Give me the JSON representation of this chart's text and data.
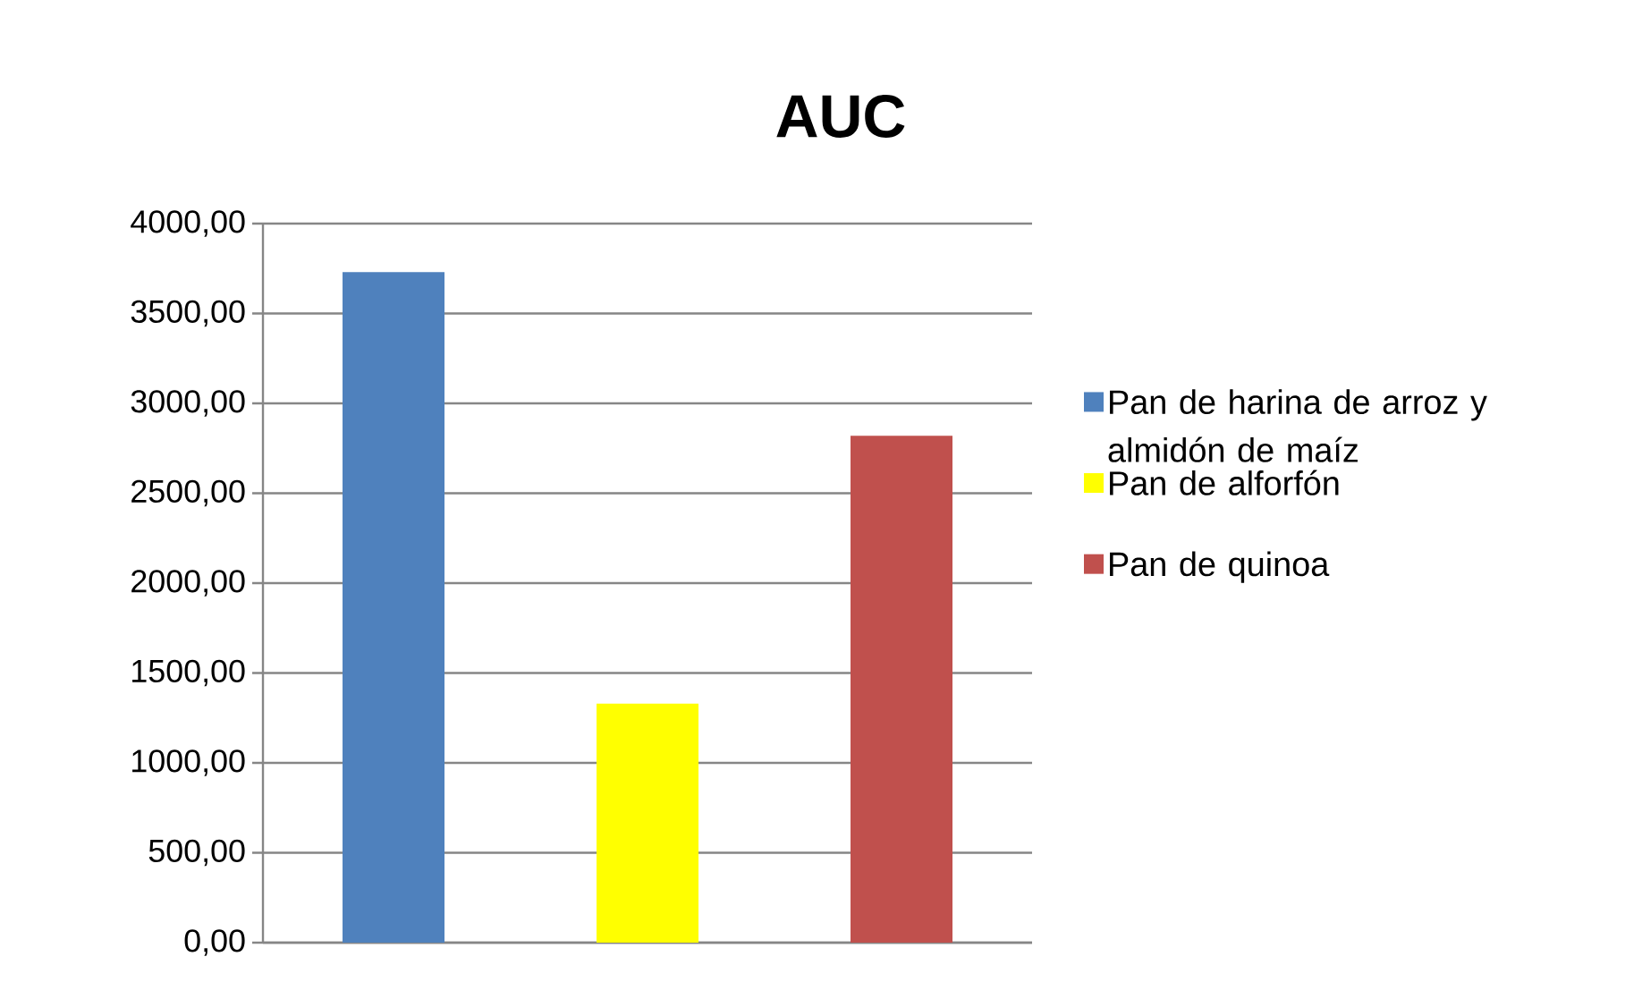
{
  "chart_data": {
    "type": "bar",
    "title": "AUC",
    "categories": [
      null
    ],
    "series": [
      {
        "name": "Pan de harina de arroz y almidón de maíz",
        "color": "#4f81bd",
        "values": [
          3730
        ]
      },
      {
        "name": "Pan de alforfón",
        "color": "#ffff00",
        "values": [
          1330
        ]
      },
      {
        "name": "Pan de quinoa",
        "color": "#c0504d",
        "values": [
          2820
        ]
      }
    ],
    "ylim": [
      0,
      4000
    ],
    "yticks": [
      {
        "value": 0,
        "label": "0,00"
      },
      {
        "value": 500,
        "label": "500,00"
      },
      {
        "value": 1000,
        "label": "1000,00"
      },
      {
        "value": 1500,
        "label": "1500,00"
      },
      {
        "value": 2000,
        "label": "2000,00"
      },
      {
        "value": 2500,
        "label": "2500,00"
      },
      {
        "value": 3000,
        "label": "3000,00"
      },
      {
        "value": 3500,
        "label": "3500,00"
      },
      {
        "value": 4000,
        "label": "4000,00"
      }
    ],
    "grid": "y",
    "legend": "right"
  }
}
